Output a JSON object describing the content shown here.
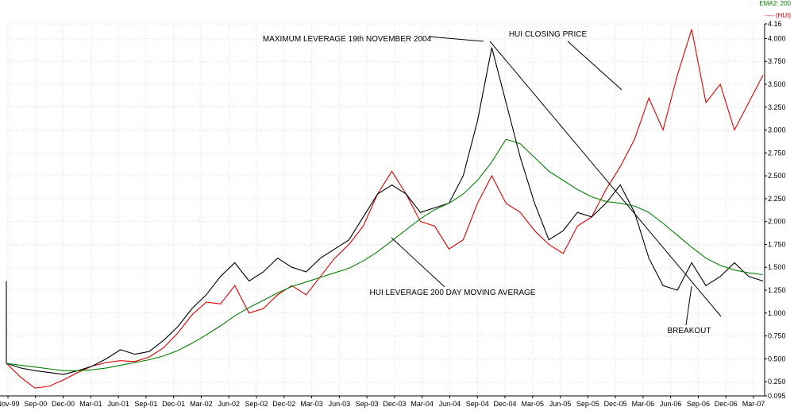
{
  "chart_data": {
    "type": "line",
    "title": "",
    "xlabel": "",
    "ylabel": "",
    "ylim": [
      0.095,
      4.16
    ],
    "x_tick_labels": [
      "Nov-99",
      "Sep-00",
      "Dec-00",
      "Mar-01",
      "Jun-01",
      "Sep-01",
      "Dec-01",
      "Mar-02",
      "Jun-02",
      "Sep-02",
      "Dec-02",
      "Mar-03",
      "Jun-03",
      "Sep-03",
      "Dec-03",
      "Mar-04",
      "Jun-04",
      "Sep-04",
      "Dec-04",
      "Mar-05",
      "Jun-05",
      "Sep-05",
      "Dec-05",
      "Mar-06",
      "Jun-06",
      "Sep-06",
      "Dec-06",
      "Mar-07"
    ],
    "y_tick_labels": [
      "0.095",
      "0.250",
      "0.500",
      "0.750",
      "1.000",
      "1.250",
      "1.500",
      "1.750",
      "2.000",
      "2.250",
      "2.500",
      "2.750",
      "3.000",
      "3.250",
      "3.500",
      "3.750",
      "4.000",
      "4.16"
    ],
    "grid": true,
    "legend_position": "top-right",
    "legend": [
      {
        "label": "EMA2: 200",
        "color": "#008000"
      },
      {
        "label": "---- (HUI)",
        "color": "#cc0000"
      }
    ],
    "colors": {
      "leverage": "#000000",
      "ema": "#008000",
      "hui": "#dd0000",
      "trendline": "#000000"
    },
    "series": [
      {
        "values": [
          0.45,
          0.4,
          0.37,
          0.35,
          0.33,
          0.37,
          0.42,
          0.5,
          0.6,
          0.55,
          0.58,
          0.7,
          0.85,
          1.05,
          1.2,
          1.4,
          1.55,
          1.35,
          1.45,
          1.6,
          1.5,
          1.45,
          1.6,
          1.7,
          1.8,
          2.05,
          2.3,
          2.4,
          2.3,
          2.1,
          2.15,
          2.2,
          2.5,
          3.1,
          3.9,
          3.3,
          2.7,
          2.2,
          1.8,
          1.9,
          2.1,
          2.05,
          2.2,
          2.4,
          2.1,
          1.6,
          1.3,
          1.25,
          1.55,
          1.3,
          1.4,
          1.55,
          1.4,
          1.35
        ]
      },
      {
        "name": "HUI LEVERAGE 200 DAY MOVING AVERAGE",
        "values": [
          0.45,
          0.43,
          0.41,
          0.39,
          0.37,
          0.37,
          0.38,
          0.4,
          0.43,
          0.46,
          0.49,
          0.53,
          0.59,
          0.67,
          0.76,
          0.86,
          0.97,
          1.06,
          1.14,
          1.22,
          1.29,
          1.34,
          1.39,
          1.44,
          1.49,
          1.57,
          1.67,
          1.79,
          1.91,
          2.03,
          2.13,
          2.2,
          2.3,
          2.45,
          2.65,
          2.9,
          2.85,
          2.7,
          2.55,
          2.45,
          2.35,
          2.27,
          2.22,
          2.2,
          2.17,
          2.1,
          1.98,
          1.85,
          1.72,
          1.6,
          1.52,
          1.47,
          1.44,
          1.42
        ]
      },
      {
        "name": "HUI CLOSING PRICE",
        "values": [
          0.45,
          0.3,
          0.18,
          0.2,
          0.27,
          0.35,
          0.42,
          0.46,
          0.48,
          0.47,
          0.52,
          0.62,
          0.78,
          0.98,
          1.12,
          1.1,
          1.3,
          1.0,
          1.05,
          1.2,
          1.3,
          1.2,
          1.4,
          1.6,
          1.75,
          1.95,
          2.3,
          2.55,
          2.3,
          2.0,
          1.95,
          1.7,
          1.8,
          2.2,
          2.5,
          2.2,
          2.1,
          1.9,
          1.75,
          1.65,
          1.95,
          2.05,
          2.35,
          2.6,
          2.9,
          3.35,
          3.0,
          3.6,
          4.1,
          3.3,
          3.5,
          3.0,
          3.3,
          3.6
        ]
      }
    ],
    "annotations": [
      "MAXIMUM LEVERAGE 19th NOVEMBER 2004",
      "HUI CLOSING PRICE",
      "HUI LEVERAGE 200 DAY MOVING AVERAGE",
      "BREAKOUT"
    ]
  }
}
